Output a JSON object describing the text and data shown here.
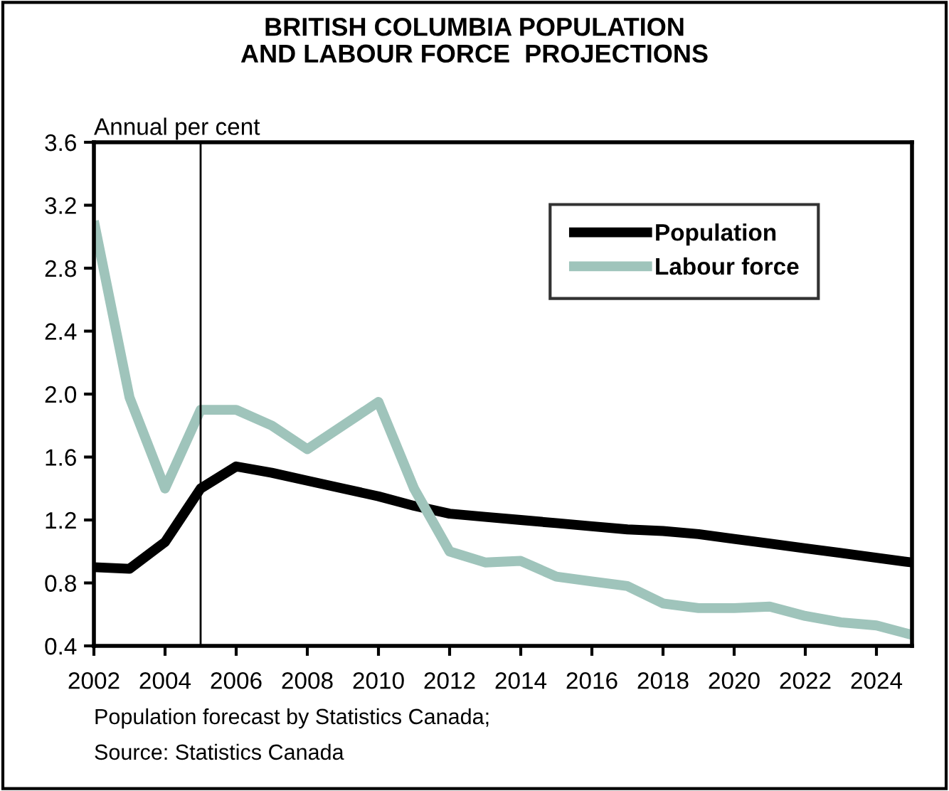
{
  "chart_data": {
    "type": "line",
    "title": "BRITISH COLUMBIA POPULATION\nAND LABOUR FORCE  PROJECTIONS",
    "ylabel": "Annual per cent",
    "x": [
      2002,
      2003,
      2004,
      2005,
      2006,
      2007,
      2008,
      2009,
      2010,
      2011,
      2012,
      2013,
      2014,
      2015,
      2016,
      2017,
      2018,
      2019,
      2020,
      2021,
      2022,
      2023,
      2024,
      2025
    ],
    "series": [
      {
        "name": "Population",
        "color": "#000000",
        "values": [
          0.9,
          0.89,
          1.06,
          1.4,
          1.54,
          1.5,
          1.45,
          1.4,
          1.35,
          1.29,
          1.24,
          1.22,
          1.2,
          1.18,
          1.16,
          1.14,
          1.13,
          1.11,
          1.08,
          1.05,
          1.02,
          0.99,
          0.96,
          0.93
        ]
      },
      {
        "name": "Labour force",
        "color": "#9fc4bb",
        "values": [
          3.1,
          1.98,
          1.4,
          1.9,
          1.9,
          1.8,
          1.65,
          1.8,
          1.95,
          1.4,
          1.0,
          0.93,
          0.94,
          0.84,
          0.81,
          0.78,
          0.67,
          0.64,
          0.64,
          0.65,
          0.59,
          0.55,
          0.53,
          0.47
        ]
      }
    ],
    "xlim": [
      2002,
      2025
    ],
    "xticks": [
      2002,
      2004,
      2006,
      2008,
      2010,
      2012,
      2014,
      2016,
      2018,
      2020,
      2022,
      2024
    ],
    "ylim": [
      0.4,
      3.6
    ],
    "yticks": [
      {
        "value": 0.4,
        "label": "0.4"
      },
      {
        "value": 0.8,
        "label": "0.8"
      },
      {
        "value": 1.2,
        "label": "1.2"
      },
      {
        "value": 1.6,
        "label": "1.6"
      },
      {
        "value": 2.0,
        "label": "2.0"
      },
      {
        "value": 2.4,
        "label": "2.4"
      },
      {
        "value": 2.8,
        "label": "2.8"
      },
      {
        "value": 3.2,
        "label": "3.2"
      },
      {
        "value": 3.6,
        "label": "3.6"
      }
    ],
    "ref_lines": [
      {
        "axis": "x",
        "value": 2005,
        "color": "#000000"
      }
    ],
    "legend": "top right",
    "grid": false,
    "marker": "none",
    "line_style": "solid",
    "annotations": [
      "Population forecast by Statistics Canada;",
      "Source: Statistics Canada"
    ]
  }
}
